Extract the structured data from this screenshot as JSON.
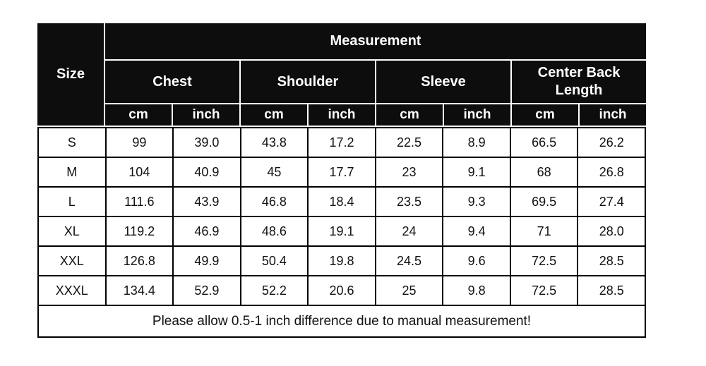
{
  "chart_data": {
    "type": "table",
    "corner_label": "Size",
    "span_header": "Measurement",
    "groups": [
      "Chest",
      "Shoulder",
      "Sleeve",
      "Center Back Length"
    ],
    "units": [
      "cm",
      "inch"
    ],
    "rows": [
      {
        "size": "S",
        "values": [
          "99",
          "39.0",
          "43.8",
          "17.2",
          "22.5",
          "8.9",
          "66.5",
          "26.2"
        ]
      },
      {
        "size": "M",
        "values": [
          "104",
          "40.9",
          "45",
          "17.7",
          "23",
          "9.1",
          "68",
          "26.8"
        ]
      },
      {
        "size": "L",
        "values": [
          "111.6",
          "43.9",
          "46.8",
          "18.4",
          "23.5",
          "9.3",
          "69.5",
          "27.4"
        ]
      },
      {
        "size": "XL",
        "values": [
          "119.2",
          "46.9",
          "48.6",
          "19.1",
          "24",
          "9.4",
          "71",
          "28.0"
        ]
      },
      {
        "size": "XXL",
        "values": [
          "126.8",
          "49.9",
          "50.4",
          "19.8",
          "24.5",
          "9.6",
          "72.5",
          "28.5"
        ]
      },
      {
        "size": "XXXL",
        "values": [
          "134.4",
          "52.9",
          "52.2",
          "20.6",
          "25",
          "9.8",
          "72.5",
          "28.5"
        ]
      }
    ],
    "footer_note": "Please allow 0.5-1 inch difference due to manual measurement!"
  },
  "colors": {
    "header_bg": "#0d0d0d",
    "header_text": "#ffffff",
    "header_divider": "#ffffff",
    "data_border": "#000000",
    "data_bg": "#ffffff",
    "data_text": "#111111"
  }
}
